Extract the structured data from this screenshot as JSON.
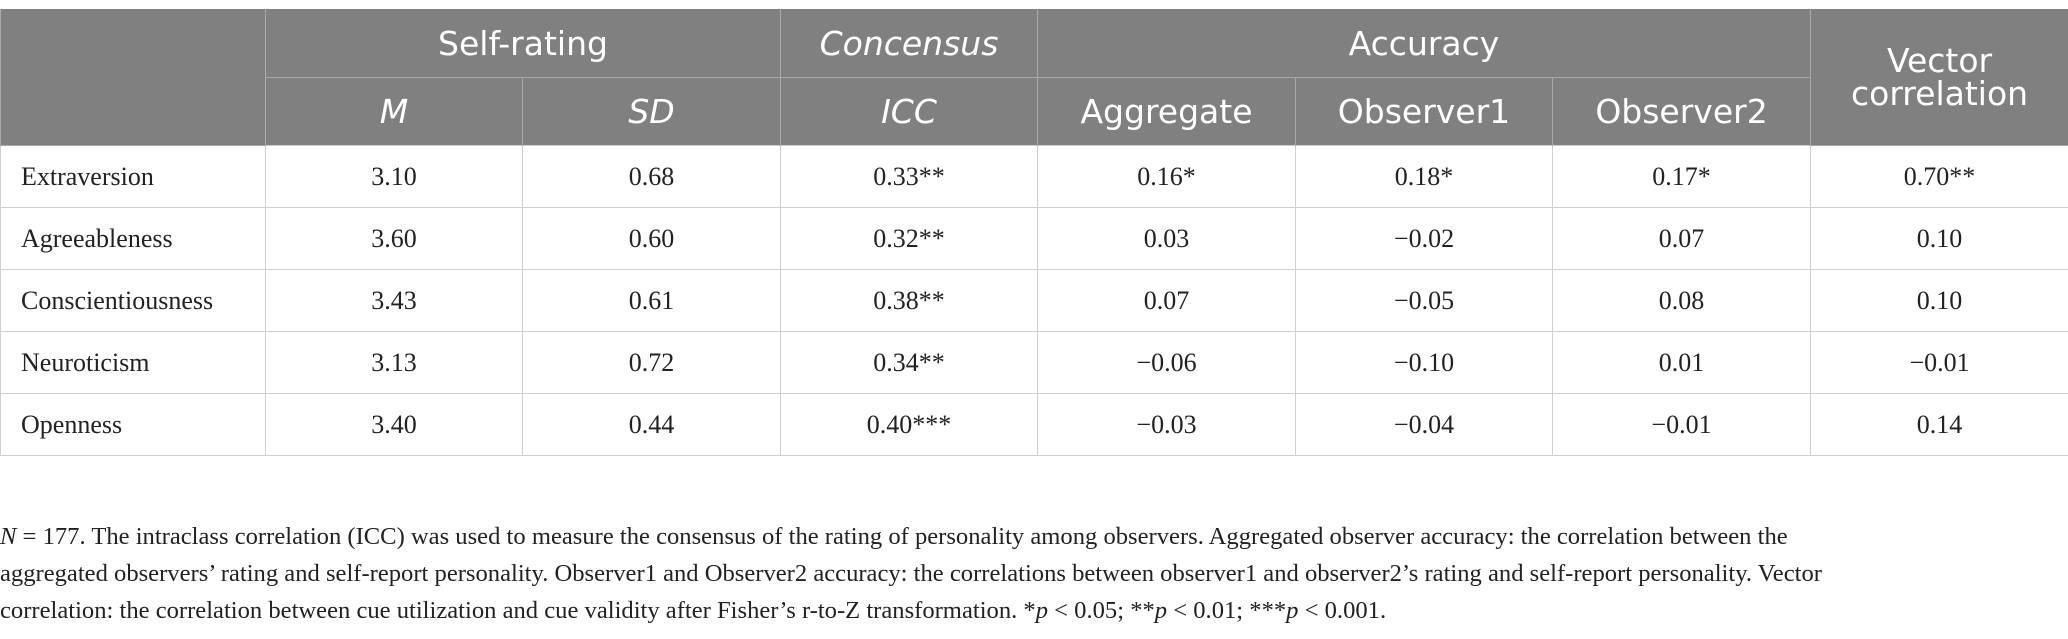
{
  "header": {
    "row1": [
      "Self-rating",
      "Concensus",
      "Accuracy",
      "Vector correlation"
    ],
    "row2": [
      "M",
      "SD",
      "ICC",
      "Aggregate",
      "Observer1",
      "Observer2"
    ]
  },
  "table": {
    "rows": [
      [
        "Extraversion",
        "3.10",
        "0.68",
        "0.33**",
        "0.16*",
        "0.18*",
        "0.17*",
        "0.70**"
      ],
      [
        "Agreeableness",
        "3.60",
        "0.60",
        "0.32**",
        "0.03",
        "−0.02",
        "0.07",
        "0.10"
      ],
      [
        "Conscientiousness",
        "3.43",
        "0.61",
        "0.38**",
        "0.07",
        "−0.05",
        "0.08",
        "0.10"
      ],
      [
        "Neuroticism",
        "3.13",
        "0.72",
        "0.34**",
        "−0.06",
        "−0.10",
        "0.01",
        "−0.01"
      ],
      [
        "Openness",
        "3.40",
        "0.44",
        "0.40***",
        "−0.03",
        "−0.04",
        "−0.01",
        "0.14"
      ]
    ]
  },
  "footnote": {
    "lines": [
      [
        {
          "text": "N",
          "italic": true
        },
        {
          "text": " = 177. The intraclass correlation (ICC) was used to measure the consensus of the rating of personality among observers. Aggregated observer accuracy: the correlation between the"
        }
      ],
      [
        {
          "text": "aggregated observers’ rating and self-report personality. Observer1 and Observer2 accuracy: the correlations between observer1 and observer2’s rating and self-report personality. Vector"
        }
      ],
      [
        {
          "text": "correlation: the correlation between cue utilization and cue validity after Fisher’s r-to-Z transformation. *"
        },
        {
          "text": "p",
          "italic": true
        },
        {
          "text": " < 0.05; **"
        },
        {
          "text": "p",
          "italic": true
        },
        {
          "text": " < 0.01; ***"
        },
        {
          "text": "p",
          "italic": true
        },
        {
          "text": " < 0.001."
        }
      ]
    ]
  }
}
